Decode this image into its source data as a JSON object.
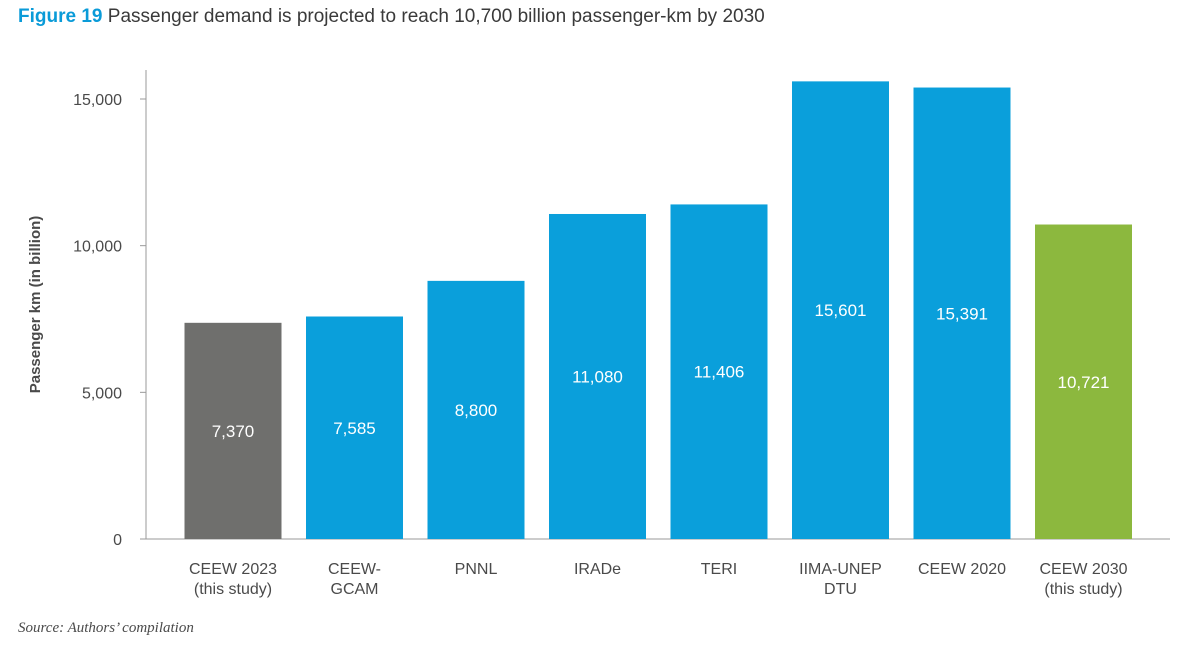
{
  "figure_label": "Figure 19",
  "title": "Passenger demand is projected to reach 10,700 billion passenger-km by 2030",
  "source": "Source: Authors’ compilation",
  "chart_data": {
    "type": "bar",
    "categories": [
      [
        "CEEW 2023",
        "(this study)"
      ],
      [
        "CEEW-",
        "GCAM"
      ],
      [
        "PNNL"
      ],
      [
        "IRADe"
      ],
      [
        "TERI"
      ],
      [
        "IIMA-UNEP",
        "DTU"
      ],
      [
        "CEEW 2020"
      ],
      [
        "CEEW 2030",
        "(this study)"
      ]
    ],
    "values": [
      7370,
      7585,
      8800,
      11080,
      11406,
      15601,
      15391,
      10721
    ],
    "data_labels": [
      "7,370",
      "7,585",
      "8,800",
      "11,080",
      "11,406",
      "15,601",
      "15,391",
      "10,721"
    ],
    "bar_colors": [
      "#6f6f6d",
      "#0a9fdb",
      "#0a9fdb",
      "#0a9fdb",
      "#0a9fdb",
      "#0a9fdb",
      "#0a9fdb",
      "#8cb83e"
    ],
    "ylabel": "Passenger km (in billion)",
    "ylim": [
      0,
      16000
    ],
    "yticks": [
      0,
      5000,
      10000,
      15000
    ],
    "ytick_labels": [
      "0",
      "5,000",
      "10,000",
      "15,000"
    ],
    "grid": false
  }
}
